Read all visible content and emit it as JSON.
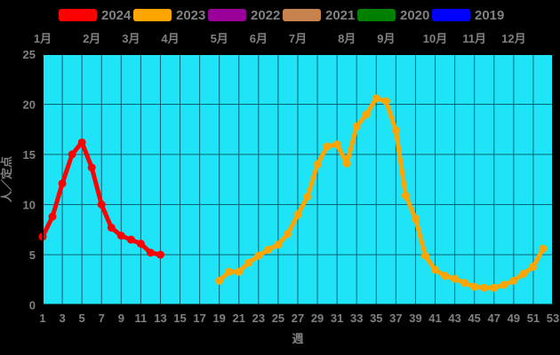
{
  "page": {
    "background": "#000000",
    "text_color": "#808080"
  },
  "legend": {
    "items": [
      {
        "label": "2024",
        "color": "#ff0000"
      },
      {
        "label": "2023",
        "color": "#ffa500"
      },
      {
        "label": "2022",
        "color": "#990099"
      },
      {
        "label": "2021",
        "color": "#c8824b"
      },
      {
        "label": "2020",
        "color": "#008000"
      },
      {
        "label": "2019",
        "color": "#0000ff"
      }
    ]
  },
  "chart_data": {
    "type": "line",
    "title": "",
    "xlabel": "週",
    "ylabel": "人／定点",
    "xlim": [
      1,
      53
    ],
    "ylim": [
      0,
      25
    ],
    "x_ticks": [
      1,
      3,
      5,
      7,
      9,
      11,
      13,
      15,
      17,
      19,
      21,
      23,
      25,
      27,
      29,
      31,
      33,
      35,
      37,
      39,
      41,
      43,
      45,
      47,
      49,
      51,
      53
    ],
    "y_ticks": [
      0,
      5,
      10,
      15,
      20,
      25
    ],
    "month_labels": [
      "1月",
      "2月",
      "3月",
      "4月",
      "5月",
      "6月",
      "7月",
      "8月",
      "9月",
      "10月",
      "11月",
      "12月"
    ],
    "month_start_weeks": [
      1,
      6,
      10,
      14,
      19,
      23,
      27,
      32,
      36,
      41,
      45,
      49
    ],
    "grid": true,
    "plot_bg": "#1fe4f7",
    "grid_color": "#0d6272",
    "border_color": "#000000",
    "legend_position": "top",
    "series": [
      {
        "name": "2024",
        "color": "#ff0000",
        "x": [
          1,
          2,
          3,
          4,
          5,
          6,
          7,
          8,
          9,
          10,
          11,
          12,
          13
        ],
        "y": [
          6.8,
          8.8,
          12.1,
          15.0,
          16.2,
          13.7,
          10.0,
          7.7,
          6.9,
          6.5,
          6.1,
          5.2,
          5.0
        ]
      },
      {
        "name": "2023",
        "color": "#ffa500",
        "x": [
          19,
          20,
          21,
          22,
          23,
          24,
          25,
          26,
          27,
          28,
          29,
          30,
          31,
          32,
          33,
          34,
          35,
          36,
          37,
          38,
          39,
          40,
          41,
          42,
          43,
          44,
          45,
          46,
          47,
          48,
          49,
          50,
          51,
          52
        ],
        "y": [
          2.4,
          3.3,
          3.3,
          4.2,
          4.9,
          5.5,
          6.0,
          7.1,
          9.0,
          10.8,
          14.0,
          15.8,
          16.0,
          14.1,
          17.8,
          19.0,
          20.6,
          20.3,
          17.4,
          10.9,
          8.6,
          4.9,
          3.5,
          2.9,
          2.6,
          2.2,
          1.8,
          1.7,
          1.7,
          2.0,
          2.4,
          3.1,
          3.8,
          5.6
        ]
      },
      {
        "name": "2022",
        "color": "#990099",
        "x": [],
        "y": []
      },
      {
        "name": "2021",
        "color": "#c8824b",
        "x": [],
        "y": []
      },
      {
        "name": "2020",
        "color": "#008000",
        "x": [],
        "y": []
      },
      {
        "name": "2019",
        "color": "#0000ff",
        "x": [],
        "y": []
      }
    ]
  }
}
